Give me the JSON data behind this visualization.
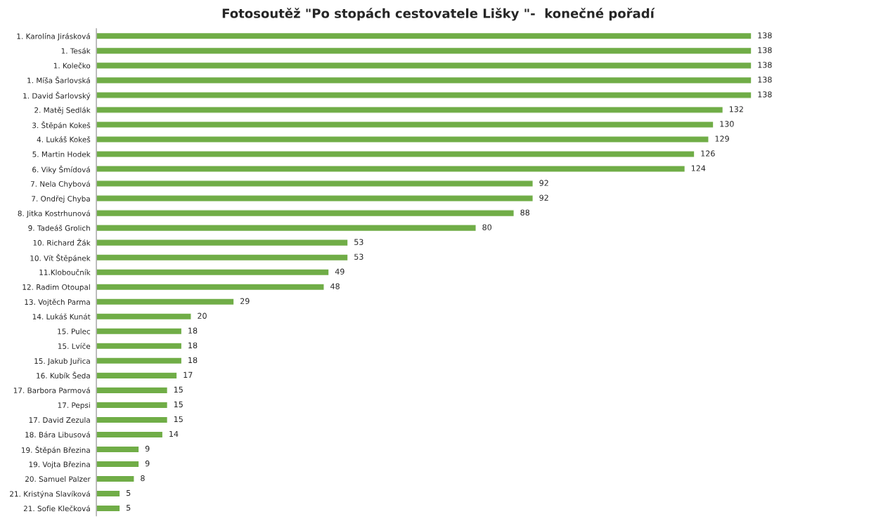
{
  "chart_data": {
    "type": "bar",
    "orientation": "horizontal",
    "title": "Fotosoutěž \"Po stopách cestovatele Lišky \"-  konečné pořadí",
    "categories": [
      "1. Karolína Jirásková",
      "1. Tesák",
      "1. Kolečko",
      "1. Míša Šarlovská",
      "1. David Šarlovský",
      "2. Matěj Sedlák",
      "3. Štěpán Kokeš",
      "4. Lukáš Kokeš",
      "5. Martin Hodek",
      "6. Viky Šmídová",
      "7. Nela Chybová",
      "7. Ondřej Chyba",
      "8. Jitka Kostrhunová",
      "9. Tadeáš Grolich",
      "10. Richard Žák",
      "10. Vít Štěpánek",
      "11.Kloboučník",
      "12. Radim Otoupal",
      "13. Vojtěch Parma",
      "14. Lukáš Kunát",
      "15. Pulec",
      "15. Lvíče",
      "15. Jakub Juřica",
      "16. Kubík Šeda",
      "17. Barbora Parmová",
      "17. Pepsi",
      "17. David Zezula",
      "18. Bára Libusová",
      "19. Štěpán Březina",
      "19. Vojta Březina",
      "20. Samuel Palzer",
      "21. Kristýna Slavíková",
      "21. Sofie Klečková"
    ],
    "series": [
      {
        "color": "#70ad47",
        "values": [
          138,
          138,
          138,
          138,
          138,
          132,
          130,
          129,
          126,
          124,
          92,
          92,
          88,
          80,
          53,
          53,
          49,
          48,
          29,
          20,
          18,
          18,
          18,
          17,
          15,
          15,
          15,
          14,
          9,
          9,
          8,
          5,
          5
        ]
      }
    ],
    "data_labels": true,
    "grid": false,
    "legend": false
  }
}
